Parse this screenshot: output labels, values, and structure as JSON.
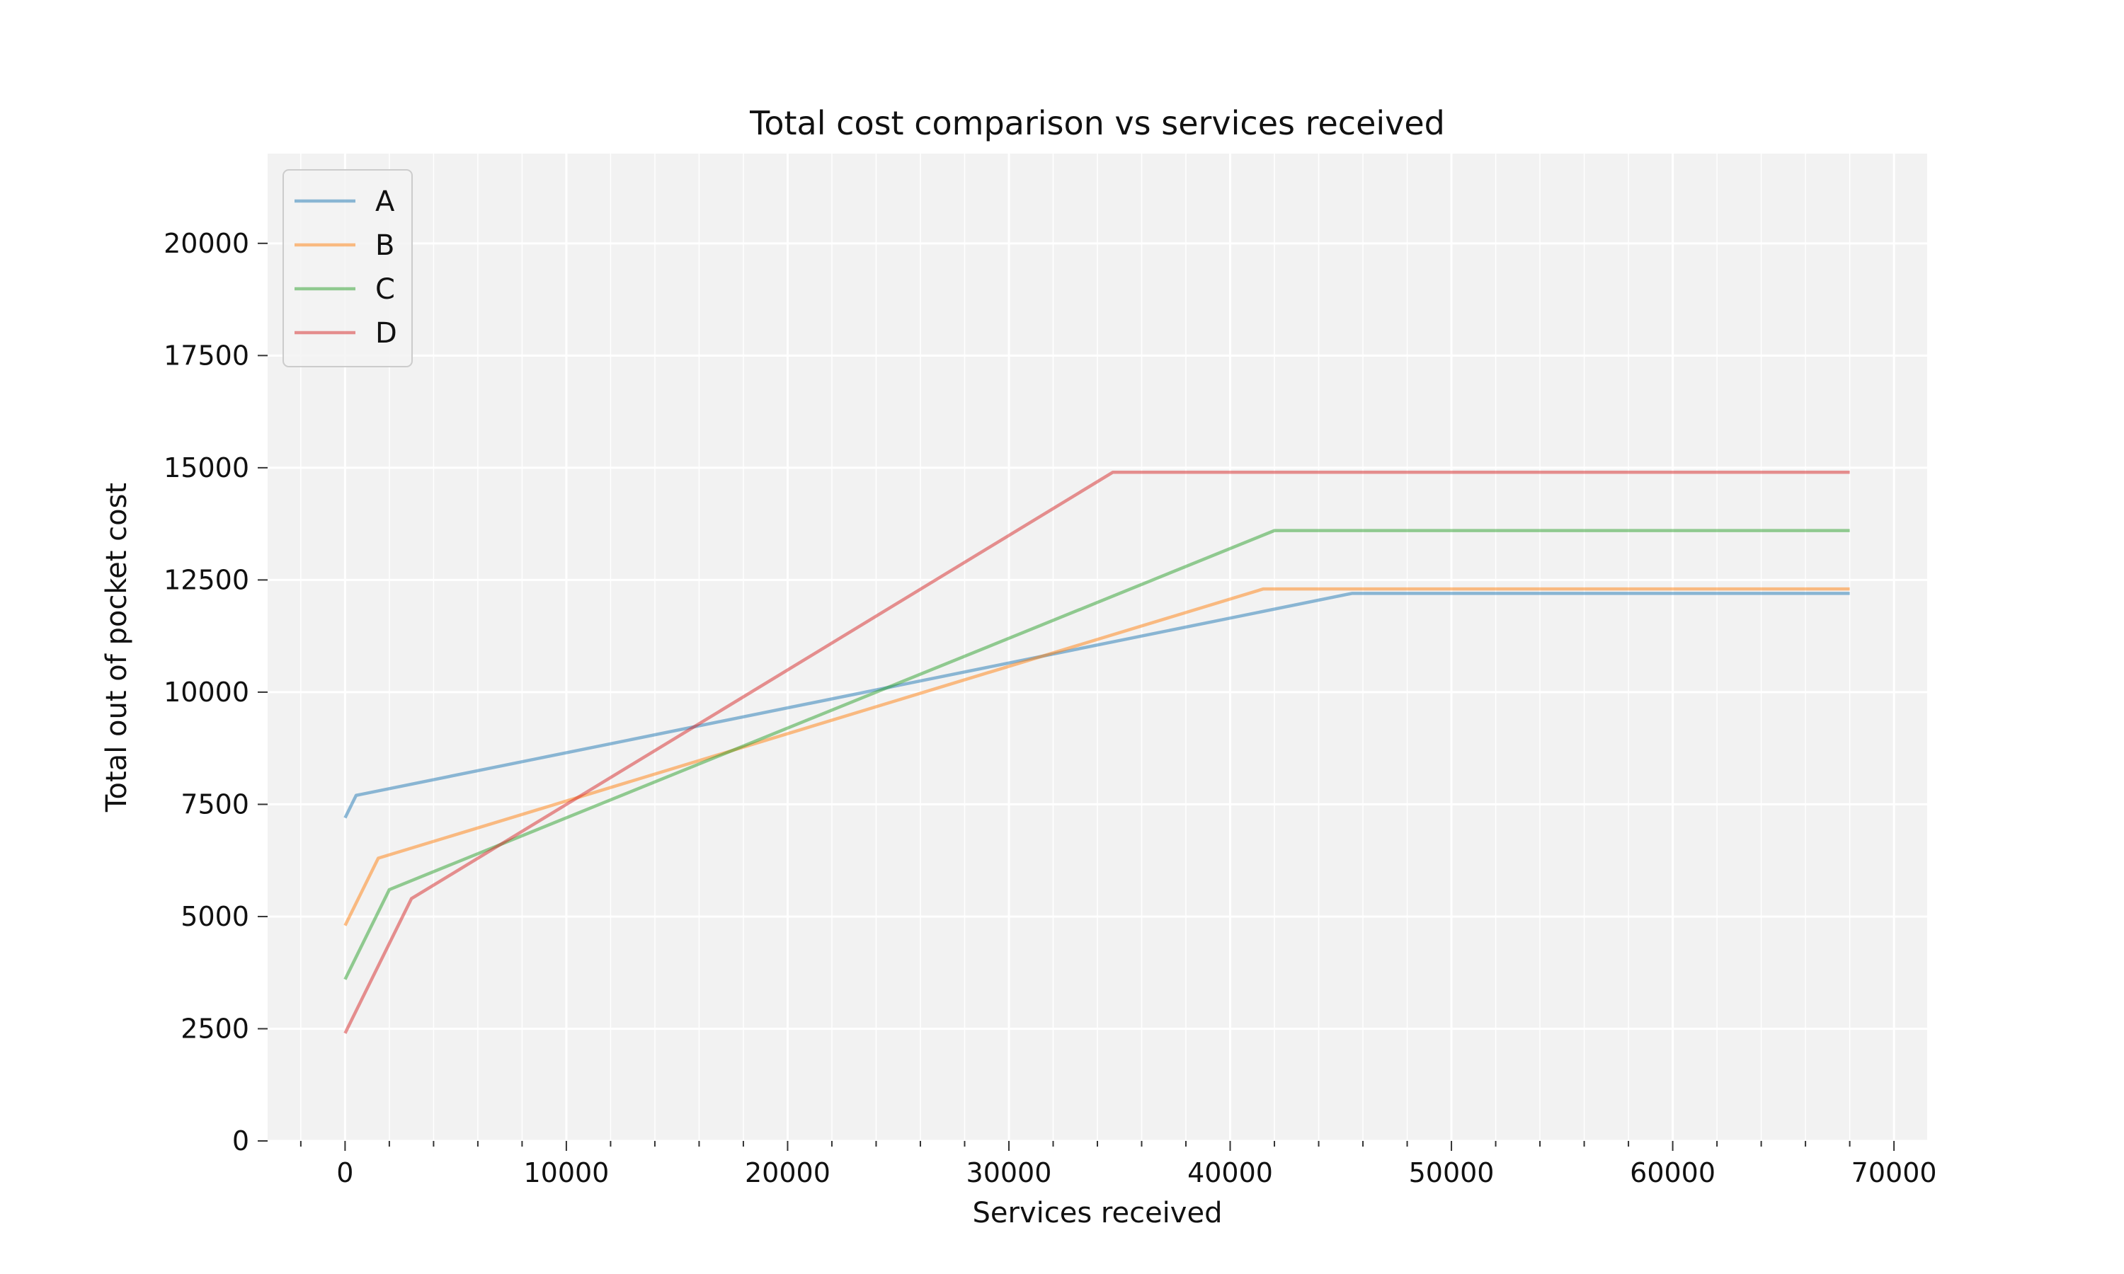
{
  "chart_data": {
    "type": "line",
    "title": "Total cost comparison vs services received",
    "xlabel": "Services received",
    "ylabel": "Total out of pocket cost",
    "xlim": [
      -3500,
      71500
    ],
    "ylim": [
      0,
      22000
    ],
    "xticks": [
      0,
      10000,
      20000,
      30000,
      40000,
      50000,
      60000,
      70000
    ],
    "yticks": [
      0,
      2500,
      5000,
      7500,
      10000,
      12500,
      15000,
      17500,
      20000
    ],
    "xminor_step": 2000,
    "grid": true,
    "background": "#f2f2f2",
    "legend_position": "upper-left",
    "series": [
      {
        "name": "A",
        "color": "#1f77b4",
        "x": [
          0,
          500,
          45500,
          68000
        ],
        "y": [
          7200,
          7700,
          12200,
          12200
        ]
      },
      {
        "name": "B",
        "color": "#ff7f0e",
        "x": [
          0,
          1500,
          41500,
          68000
        ],
        "y": [
          4800,
          6300,
          12300,
          12300
        ]
      },
      {
        "name": "C",
        "color": "#2ca02c",
        "x": [
          0,
          2000,
          42000,
          68000
        ],
        "y": [
          3600,
          5600,
          13600,
          13600
        ]
      },
      {
        "name": "D",
        "color": "#d62728",
        "x": [
          0,
          3000,
          34700,
          68000
        ],
        "y": [
          2400,
          5400,
          14900,
          14900
        ]
      }
    ]
  }
}
